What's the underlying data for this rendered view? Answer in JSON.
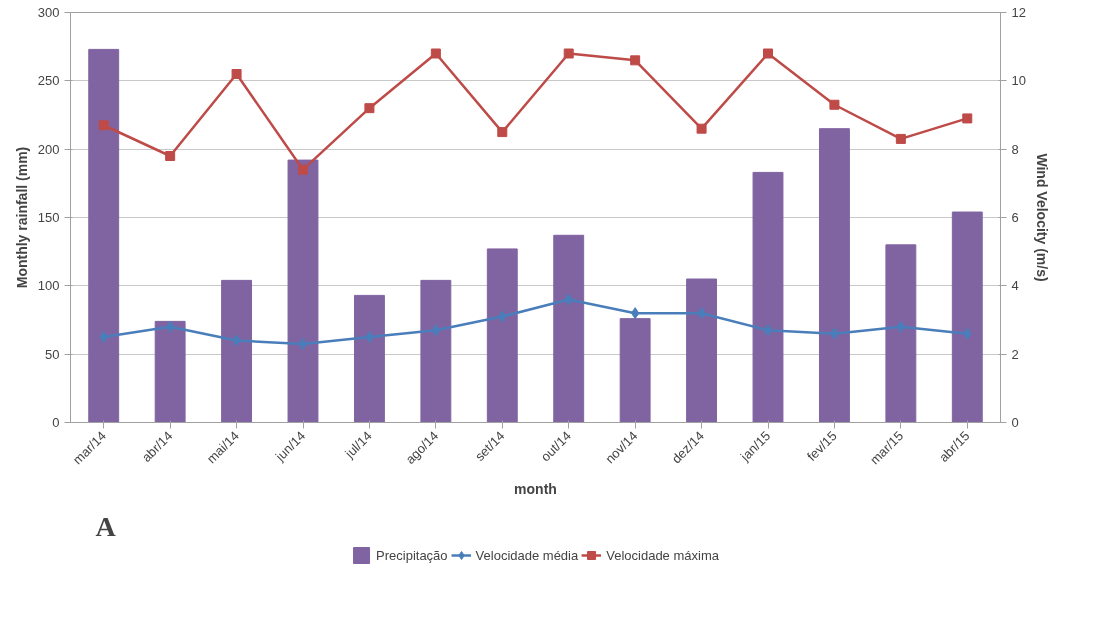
{
  "chart_data": {
    "type": "bar",
    "xlabel": "month",
    "ylabel": "Monthly rainfall (mm)",
    "y2label": "Wind Velocity (m/s)",
    "categories": [
      "mar/14",
      "abr/14",
      "mai/14",
      "jun/14",
      "jul/14",
      "ago/14",
      "set/14",
      "out/14",
      "nov/14",
      "dez/14",
      "jan/15",
      "fev/15",
      "mar/15",
      "abr/15"
    ],
    "series": [
      {
        "name": "Precipitação",
        "color": "#8064a2",
        "values": [
          273,
          74,
          104,
          192,
          93,
          104,
          127,
          137,
          76,
          105,
          183,
          215,
          130,
          154
        ]
      },
      {
        "name": "Velocidade média",
        "type": "line",
        "axis": "y2",
        "marker": "diamond",
        "color": "#4a7ebb",
        "values": [
          2.5,
          2.8,
          2.4,
          2.3,
          2.5,
          2.7,
          3.1,
          3.6,
          3.2,
          3.2,
          2.7,
          2.6,
          2.8,
          2.6
        ]
      },
      {
        "name": "Velocidade máxima",
        "type": "line",
        "axis": "y2",
        "marker": "square",
        "color": "#be4b48",
        "values": [
          8.7,
          7.8,
          10.2,
          7.4,
          9.2,
          10.8,
          8.5,
          10.8,
          10.6,
          8.6,
          10.8,
          9.3,
          8.3,
          8.9
        ]
      }
    ],
    "ylim": [
      0,
      300
    ],
    "yticks": [
      0,
      50,
      100,
      150,
      200,
      250,
      300
    ],
    "y2lim": [
      0,
      12
    ],
    "y2ticks": [
      0,
      2,
      4,
      6,
      8,
      10,
      12
    ],
    "grid": "y",
    "legend": "bottom",
    "annotations": [
      "A"
    ]
  }
}
